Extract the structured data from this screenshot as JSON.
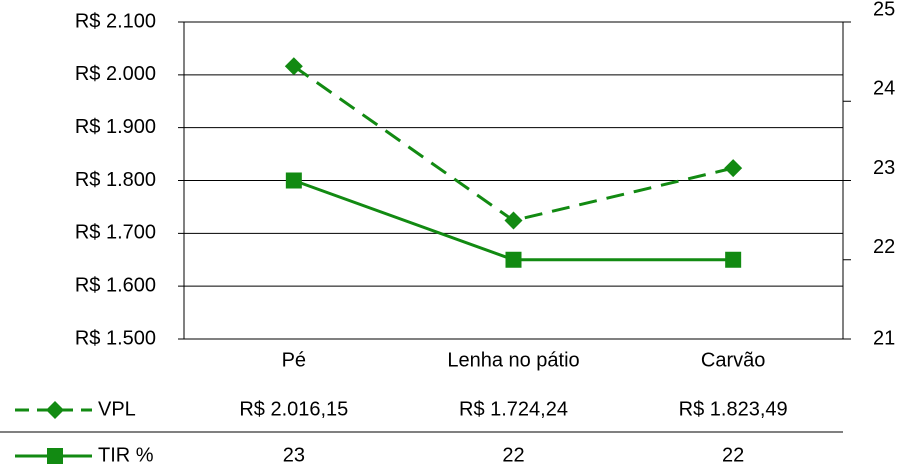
{
  "chart_data": {
    "type": "line",
    "categories": [
      "Pé",
      "Lenha no pátio",
      "Carvão"
    ],
    "series": [
      {
        "name": "VPL",
        "color": "#128a12",
        "dash": true,
        "marker": "diamond",
        "values": [
          2016.15,
          1724.24,
          1823.49
        ],
        "value_labels": [
          "R$ 2.016,15",
          "R$ 1.724,24",
          "R$ 1.823,49"
        ]
      },
      {
        "name": "TIR %",
        "color": "#128a12",
        "dash": false,
        "marker": "square",
        "axis": "y2",
        "values": [
          23,
          22,
          22
        ]
      }
    ],
    "ylim": [
      1500,
      2100
    ],
    "yticks": [
      {
        "value": 1500,
        "label": "R$ 1.500"
      },
      {
        "value": 1600,
        "label": "R$ 1.600"
      },
      {
        "value": 1700,
        "label": "R$ 1.700"
      },
      {
        "value": 1800,
        "label": "R$ 1.800"
      },
      {
        "value": 1900,
        "label": "R$ 1.900"
      },
      {
        "value": 2000,
        "label": "R$ 2.000"
      },
      {
        "value": 2100,
        "label": "R$ 2.100"
      }
    ],
    "y2lim": [
      21,
      25
    ],
    "y2ticks": [
      21,
      22,
      23,
      24,
      25
    ],
    "grid": true
  }
}
